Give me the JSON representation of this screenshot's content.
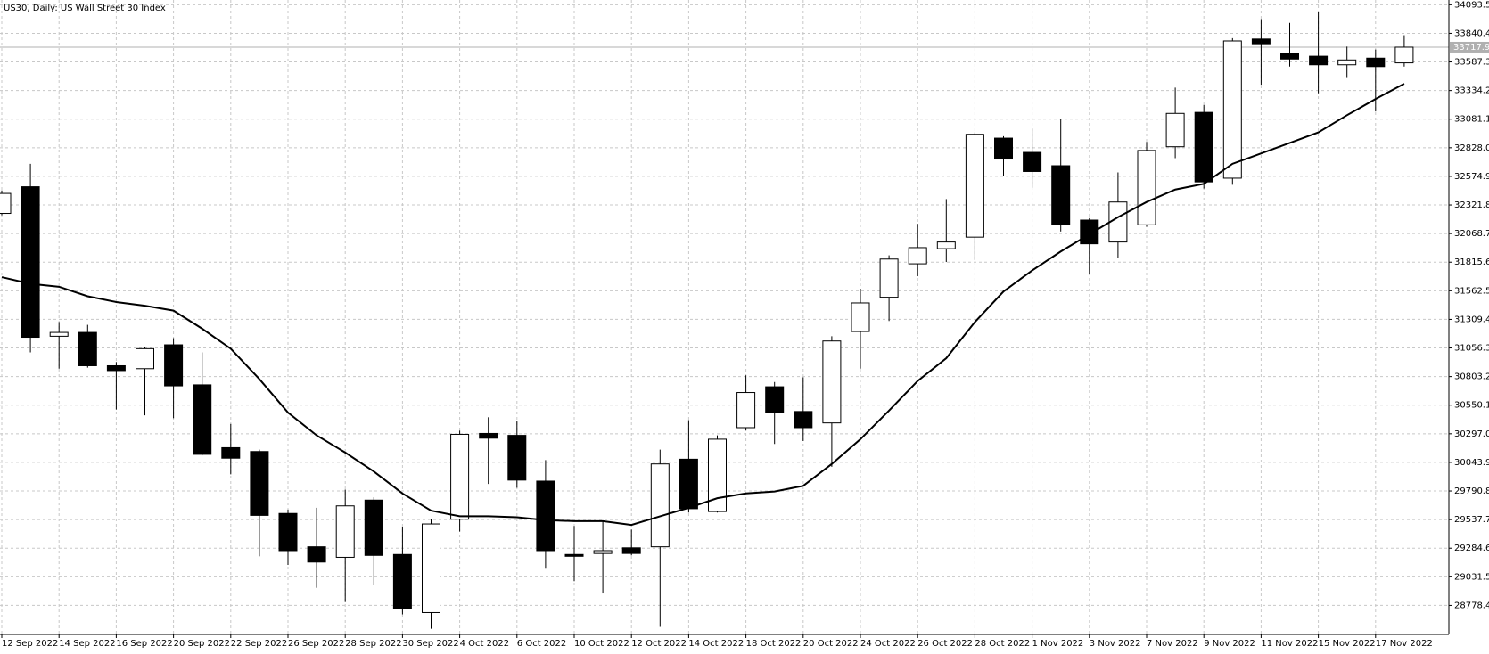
{
  "chart_data": {
    "type": "candlestick",
    "title": "US30, Daily:  US Wall Street 30 Index",
    "categories": [
      "12 Sep 2022",
      null,
      "14 Sep 2022",
      null,
      "16 Sep 2022",
      null,
      "20 Sep 2022",
      null,
      "22 Sep 2022",
      null,
      "26 Sep 2022",
      null,
      "28 Sep 2022",
      null,
      "30 Sep 2022",
      null,
      "4 Oct 2022",
      null,
      "6 Oct 2022",
      null,
      "10 Oct 2022",
      null,
      "12 Oct 2022",
      null,
      "14 Oct 2022",
      null,
      "18 Oct 2022",
      null,
      "20 Oct 2022",
      null,
      "24 Oct 2022",
      null,
      "26 Oct 2022",
      null,
      "28 Oct 2022",
      null,
      "1 Nov 2022",
      null,
      "3 Nov 2022",
      null,
      "7 Nov 2022",
      null,
      "9 Nov 2022",
      null,
      "11 Nov 2022",
      null,
      "15 Nov 2022",
      null,
      "17 Nov 2022",
      null
    ],
    "open": [
      32247,
      32483,
      31160,
      31194,
      30899,
      30873,
      31084,
      30730,
      30174,
      30140,
      29592,
      29297,
      29204,
      29710,
      29229,
      28715,
      29541,
      30300,
      30283,
      29878,
      29229,
      29238,
      29288,
      29297,
      30072,
      29609,
      30351,
      30713,
      30494,
      30393,
      31202,
      31505,
      31801,
      31935,
      32037,
      32913,
      32787,
      32669,
      32188,
      31994,
      32146,
      32837,
      33141,
      32559,
      33790,
      33664,
      33638,
      33562,
      33621,
      33579
    ],
    "high": [
      32450,
      32686,
      31286,
      31261,
      30932,
      31067,
      31143,
      31017,
      30384,
      30157,
      29626,
      29642,
      29803,
      29735,
      29474,
      29541,
      30325,
      30443,
      30410,
      30064,
      29482,
      29524,
      29449,
      30157,
      30418,
      30283,
      30814,
      30755,
      30797,
      31160,
      31581,
      31876,
      32155,
      32374,
      32964,
      32930,
      32998,
      33082,
      32205,
      32610,
      32880,
      33360,
      33208,
      33798,
      33967,
      33933,
      34026,
      33723,
      33697,
      33824
    ],
    "low": [
      32230,
      31017,
      30873,
      30882,
      30511,
      30460,
      30435,
      30106,
      29938,
      29213,
      29137,
      28934,
      28808,
      28960,
      28698,
      28572,
      29432,
      29853,
      29819,
      29103,
      28993,
      28884,
      29221,
      28589,
      29600,
      29600,
      30325,
      30207,
      30233,
      30005,
      30873,
      31295,
      31691,
      31817,
      31834,
      32576,
      32475,
      32087,
      31708,
      31851,
      32129,
      32736,
      32467,
      32500,
      33385,
      33546,
      33310,
      33453,
      33149,
      33546
    ],
    "close": [
      32424,
      31151,
      31194,
      30899,
      30856,
      31050,
      30721,
      30115,
      30081,
      29575,
      29263,
      29162,
      29659,
      29221,
      28749,
      29499,
      30292,
      30258,
      29887,
      29263,
      29213,
      29263,
      29238,
      30030,
      29634,
      30249,
      30662,
      30485,
      30351,
      31118,
      31455,
      31843,
      31944,
      31994,
      32947,
      32728,
      32618,
      32146,
      31978,
      32348,
      32804,
      33132,
      32526,
      33773,
      33748,
      33613,
      33562,
      33605,
      33546,
      33717.9
    ],
    "ma": {
      "color": "#000000",
      "values": [
        31683,
        31624,
        31598,
        31514,
        31463,
        31430,
        31387,
        31227,
        31050,
        30781,
        30485,
        30283,
        30131,
        29963,
        29769,
        29617,
        29567,
        29567,
        29558,
        29533,
        29524,
        29524,
        29491,
        29567,
        29642,
        29727,
        29769,
        29786,
        29836,
        30030,
        30249,
        30502,
        30764,
        30966,
        31286,
        31556,
        31742,
        31910,
        32062,
        32214,
        32348,
        32458,
        32509,
        32686,
        32778,
        32871,
        32964,
        33116,
        33259,
        33394
      ]
    },
    "up_color": "#ffffff",
    "down_color": "#000000",
    "last_price": 33717.9,
    "ylim": [
      28521.6,
      34135.6
    ],
    "yticks": [
      34093.5,
      33840.4,
      33587.3,
      33334.2,
      33081.1,
      {
        "value": 32828.0,
        "label": "32828.0"
      },
      32574.9,
      32321.8,
      32068.7,
      31815.6,
      31562.5,
      31309.4,
      31056.3,
      30803.2,
      30550.1,
      {
        "value": 30297.0,
        "label": "30297.0"
      },
      30043.9,
      29790.8,
      29537.7,
      29284.6,
      29031.5,
      28778.4
    ],
    "grid": true
  }
}
